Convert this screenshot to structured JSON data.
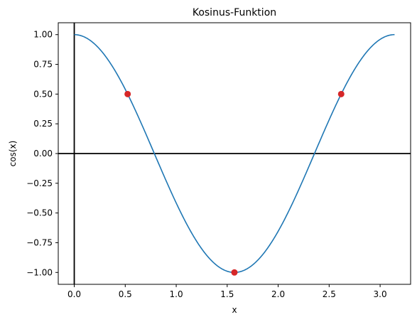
{
  "chart_data": {
    "type": "line",
    "title": "Kosinus-Funktion",
    "xlabel": "x",
    "ylabel": "cos(x)",
    "xlim": [
      -0.157,
      3.299
    ],
    "ylim": [
      -1.1,
      1.1
    ],
    "xticks": [
      0.0,
      0.5,
      1.0,
      1.5,
      2.0,
      2.5,
      3.0
    ],
    "xtick_labels": [
      "0.0",
      "0.5",
      "1.0",
      "1.5",
      "2.0",
      "2.5",
      "3.0"
    ],
    "yticks": [
      1.0,
      0.75,
      0.5,
      0.25,
      0.0,
      -0.25,
      -0.5,
      -0.75,
      -1.0
    ],
    "ytick_labels": [
      "1.00",
      "0.75",
      "0.50",
      "0.25",
      "0.00",
      "−0.25",
      "−0.50",
      "−0.75",
      "−1.00"
    ],
    "grid": false,
    "series": [
      {
        "type": "line",
        "color": "#1f77b4",
        "function": "y = cos(2x)",
        "x_range": [
          0,
          3.1416
        ]
      },
      {
        "type": "scatter",
        "color": "#d62728",
        "points": [
          {
            "x": 0.5236,
            "y": 0.5
          },
          {
            "x": 1.5708,
            "y": -1.0
          },
          {
            "x": 2.618,
            "y": 0.5
          }
        ]
      }
    ],
    "reference_lines": [
      {
        "orientation": "horizontal",
        "y": 0,
        "color": "#000000"
      },
      {
        "orientation": "vertical",
        "x": 0,
        "color": "#000000"
      }
    ]
  }
}
